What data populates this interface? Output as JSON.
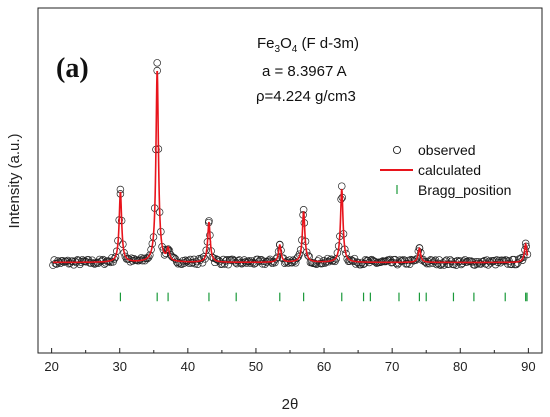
{
  "chart_data": {
    "type": "line",
    "panel_label": "(a)",
    "xlabel": "2θ",
    "ylabel": "Intensity (a.u.)",
    "xlim": [
      18,
      92
    ],
    "ylim": [
      -420,
      1180
    ],
    "xticks": [
      20,
      30,
      40,
      50,
      60,
      70,
      80,
      90
    ],
    "grid": false,
    "annotations": {
      "phase_prefix": "Fe",
      "phase_sub1": "3",
      "phase_mid": "O",
      "phase_sub2": "4",
      "phase_suffix": " (F d-3m)",
      "lattice": "a = 8.3967 A",
      "density": "ρ=4.224 g/cm3"
    },
    "legend": {
      "placement": "right",
      "observed": "observed",
      "calculated": "calculated",
      "bragg": "Bragg_position"
    },
    "background_level": 0,
    "peaks": [
      {
        "x": 30.1,
        "y": 325
      },
      {
        "x": 35.5,
        "y": 890
      },
      {
        "x": 37.1,
        "y": 55
      },
      {
        "x": 43.1,
        "y": 185
      },
      {
        "x": 53.5,
        "y": 80
      },
      {
        "x": 57.0,
        "y": 235
      },
      {
        "x": 62.6,
        "y": 340
      },
      {
        "x": 74.0,
        "y": 65
      },
      {
        "x": 89.6,
        "y": 85
      }
    ],
    "bragg_positions": [
      30.1,
      35.5,
      37.1,
      43.1,
      47.1,
      53.5,
      57.0,
      62.6,
      65.8,
      66.8,
      71.0,
      74.0,
      75.0,
      79.0,
      82.0,
      86.6,
      89.6,
      89.8
    ],
    "colors": {
      "observed": "#222222",
      "calculated": "#e8141c",
      "bragg": "#1a9a3a"
    }
  }
}
